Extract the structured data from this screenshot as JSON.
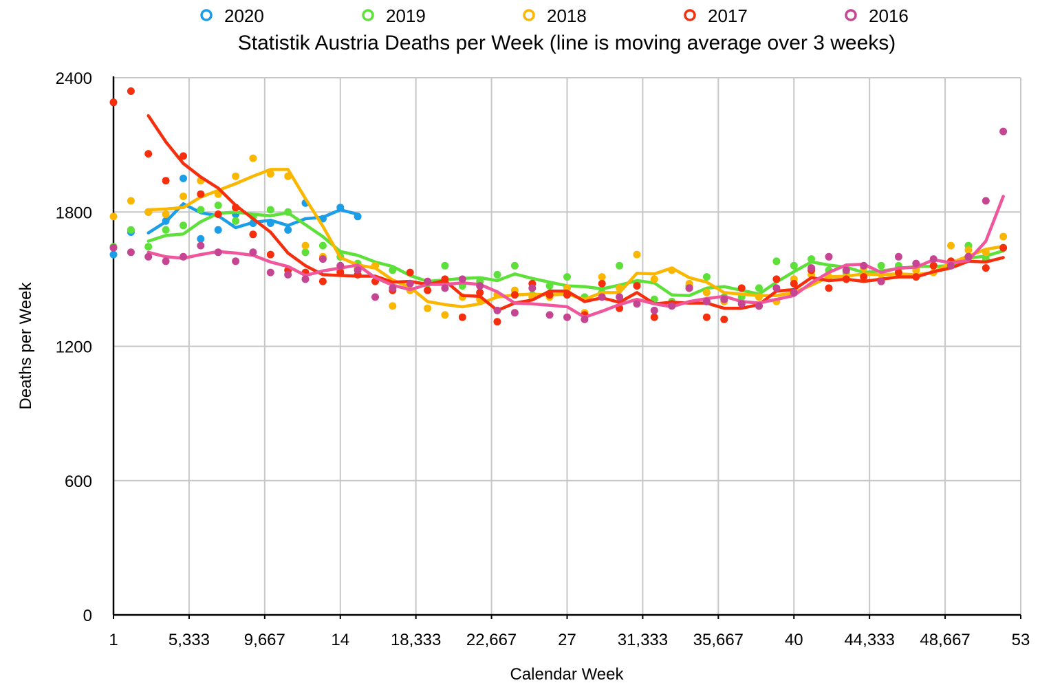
{
  "chart_data": {
    "type": "scatter",
    "title": "Statistik Austria Deaths per Week (line is moving average over 3 weeks)",
    "xlabel": "Calendar Week",
    "ylabel": "Deaths per Week",
    "xlim": [
      1,
      53
    ],
    "ylim": [
      0,
      2400
    ],
    "x_ticks": [
      {
        "value": 1,
        "label": "1"
      },
      {
        "value": 5.333,
        "label": "5,333"
      },
      {
        "value": 9.667,
        "label": "9,667"
      },
      {
        "value": 14,
        "label": "14"
      },
      {
        "value": 18.333,
        "label": "18,333"
      },
      {
        "value": 22.667,
        "label": "22,667"
      },
      {
        "value": 27,
        "label": "27"
      },
      {
        "value": 31.333,
        "label": "31,333"
      },
      {
        "value": 35.667,
        "label": "35,667"
      },
      {
        "value": 40,
        "label": "40"
      },
      {
        "value": 44.333,
        "label": "44,333"
      },
      {
        "value": 48.667,
        "label": "48,667"
      },
      {
        "value": 53,
        "label": "53"
      }
    ],
    "y_ticks": [
      {
        "value": 0,
        "label": "0"
      },
      {
        "value": 600,
        "label": "600"
      },
      {
        "value": 1200,
        "label": "1200"
      },
      {
        "value": 1800,
        "label": "1800"
      },
      {
        "value": 2400,
        "label": "2400"
      }
    ],
    "grid": true,
    "legend_position": "top",
    "moving_average_window": 3,
    "series": [
      {
        "name": "2020",
        "color": "#1b9de8",
        "weeks": [
          1,
          2,
          3,
          4,
          5,
          6,
          7,
          8,
          9,
          10,
          11,
          12,
          13,
          14,
          15
        ],
        "values": [
          1610,
          1710,
          1800,
          1760,
          1950,
          1680,
          1720,
          1790,
          1750,
          1750,
          1720,
          1840,
          1770,
          1820,
          1780
        ]
      },
      {
        "name": "2019",
        "color": "#5ee03a",
        "weeks": [
          1,
          2,
          3,
          4,
          5,
          6,
          7,
          8,
          9,
          10,
          11,
          12,
          13,
          14,
          15,
          16,
          17,
          18,
          19,
          20,
          21,
          22,
          23,
          24,
          25,
          26,
          27,
          28,
          29,
          30,
          31,
          32,
          33,
          34,
          35,
          36,
          37,
          38,
          39,
          40,
          41,
          42,
          43,
          44,
          45,
          46,
          47,
          48,
          49,
          50,
          51,
          52
        ],
        "values": [
          1645,
          1720,
          1645,
          1720,
          1740,
          1810,
          1830,
          1760,
          1780,
          1810,
          1800,
          1620,
          1650,
          1600,
          1570,
          1560,
          1540,
          1450,
          1480,
          1560,
          1470,
          1490,
          1520,
          1560,
          1430,
          1470,
          1510,
          1420,
          1440,
          1560,
          1480,
          1410,
          1400,
          1470,
          1510,
          1420,
          1420,
          1460,
          1580,
          1560,
          1590,
          1540,
          1530,
          1520,
          1560,
          1560,
          1550,
          1560,
          1570,
          1650,
          1590,
          1640
        ]
      },
      {
        "name": "2018",
        "color": "#fbb600",
        "weeks": [
          1,
          2,
          3,
          4,
          5,
          6,
          7,
          8,
          9,
          10,
          11,
          12,
          13,
          14,
          15,
          16,
          17,
          18,
          19,
          20,
          21,
          22,
          23,
          24,
          25,
          26,
          27,
          28,
          29,
          30,
          31,
          32,
          33,
          34,
          35,
          36,
          37,
          38,
          39,
          40,
          41,
          42,
          43,
          44,
          45,
          46,
          47,
          48,
          49,
          50,
          51,
          52
        ],
        "values": [
          1780,
          1850,
          1800,
          1790,
          1870,
          1940,
          1880,
          1960,
          2040,
          1970,
          1960,
          1650,
          1600,
          1540,
          1550,
          1560,
          1380,
          1450,
          1370,
          1340,
          1420,
          1410,
          1430,
          1450,
          1420,
          1420,
          1460,
          1350,
          1510,
          1460,
          1610,
          1500,
          1540,
          1480,
          1440,
          1400,
          1460,
          1420,
          1400,
          1500,
          1520,
          1510,
          1510,
          1550,
          1500,
          1520,
          1540,
          1530,
          1650,
          1630,
          1620,
          1690
        ]
      },
      {
        "name": "2017",
        "color": "#f52e0d",
        "weeks": [
          1,
          2,
          3,
          4,
          5,
          6,
          7,
          8,
          9,
          10,
          11,
          12,
          13,
          14,
          15,
          16,
          17,
          18,
          19,
          20,
          21,
          22,
          23,
          24,
          25,
          26,
          27,
          28,
          29,
          30,
          31,
          32,
          33,
          34,
          35,
          36,
          37,
          38,
          39,
          40,
          41,
          42,
          43,
          44,
          45,
          46,
          47,
          48,
          49,
          50,
          51,
          52
        ],
        "values": [
          2290,
          2340,
          2060,
          1940,
          2050,
          1880,
          1790,
          1820,
          1700,
          1610,
          1540,
          1530,
          1490,
          1530,
          1520,
          1490,
          1450,
          1530,
          1450,
          1500,
          1330,
          1440,
          1310,
          1430,
          1480,
          1430,
          1430,
          1340,
          1480,
          1370,
          1470,
          1330,
          1390,
          1460,
          1330,
          1320,
          1460,
          1380,
          1500,
          1480,
          1540,
          1460,
          1500,
          1510,
          1490,
          1530,
          1510,
          1560,
          1580,
          1600,
          1550,
          1640
        ]
      },
      {
        "name": "2016",
        "color": "#c54592",
        "weeks": [
          1,
          2,
          3,
          4,
          5,
          6,
          7,
          8,
          9,
          10,
          11,
          12,
          13,
          14,
          15,
          16,
          17,
          18,
          19,
          20,
          21,
          22,
          23,
          24,
          25,
          26,
          27,
          28,
          29,
          30,
          31,
          32,
          33,
          34,
          35,
          36,
          37,
          38,
          39,
          40,
          41,
          42,
          43,
          44,
          45,
          46,
          47,
          48,
          49,
          50,
          51,
          52
        ],
        "values": [
          1640,
          1620,
          1600,
          1580,
          1600,
          1650,
          1620,
          1580,
          1620,
          1530,
          1520,
          1500,
          1590,
          1560,
          1540,
          1420,
          1460,
          1480,
          1490,
          1460,
          1500,
          1470,
          1360,
          1350,
          1460,
          1340,
          1330,
          1320,
          1420,
          1420,
          1390,
          1360,
          1380,
          1460,
          1400,
          1410,
          1390,
          1380,
          1460,
          1440,
          1550,
          1600,
          1540,
          1560,
          1490,
          1600,
          1570,
          1590,
          1560,
          1600,
          1850,
          2160
        ]
      }
    ]
  }
}
